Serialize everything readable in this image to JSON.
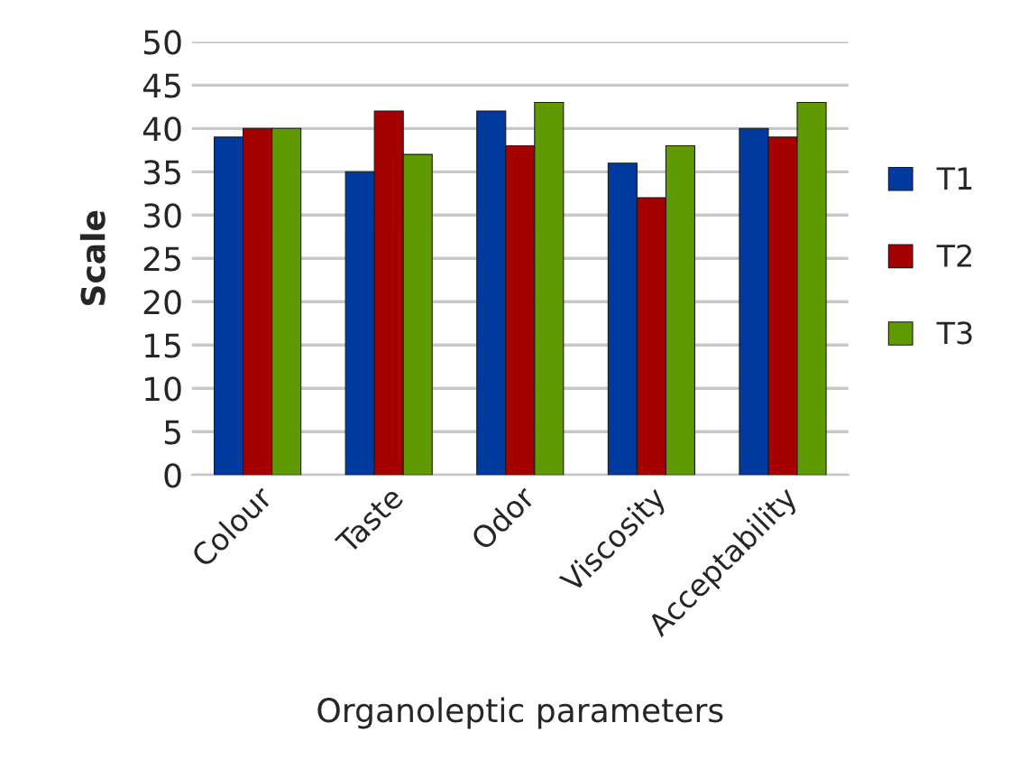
{
  "chart_data": {
    "type": "bar",
    "xlabel": "Organoleptic parameters",
    "ylabel": "Scale",
    "categories": [
      "Colour",
      "Taste",
      "Odor",
      "Viscosity",
      "Acceptability"
    ],
    "series": [
      {
        "name": "T1",
        "color": "#003a9e",
        "values": [
          39,
          35,
          42,
          36,
          40
        ]
      },
      {
        "name": "T2",
        "color": "#a50000",
        "values": [
          40,
          42,
          38,
          32,
          39
        ]
      },
      {
        "name": "T3",
        "color": "#5f9a00",
        "values": [
          40,
          37,
          43,
          38,
          43
        ]
      }
    ],
    "ylim": [
      0,
      50
    ],
    "yticks": [
      0,
      5,
      10,
      15,
      20,
      25,
      30,
      35,
      40,
      45,
      50
    ],
    "grid": "y",
    "legend": "right"
  }
}
